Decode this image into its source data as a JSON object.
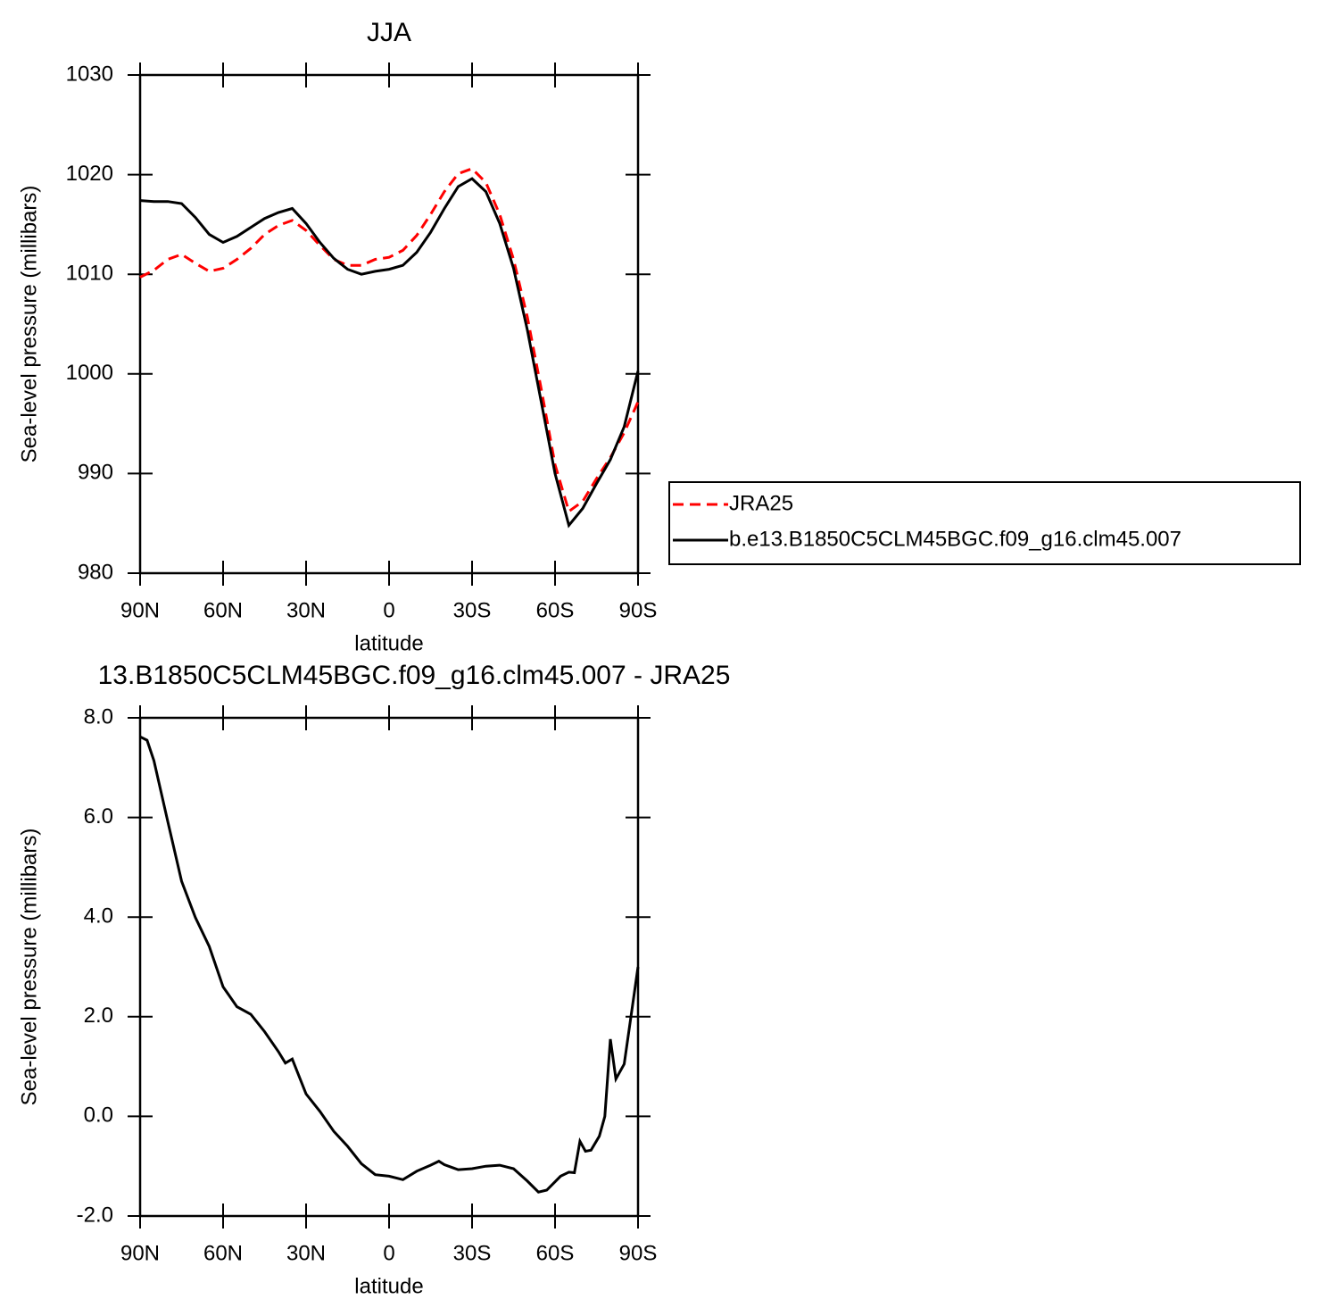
{
  "chart_data": [
    {
      "type": "line",
      "title": "JJA",
      "xlabel": "latitude",
      "ylabel": "Sea-level pressure (millibars)",
      "x": [
        90,
        85,
        80,
        75,
        70,
        65,
        60,
        55,
        50,
        45,
        40,
        35,
        30,
        25,
        20,
        15,
        10,
        5,
        0,
        -5,
        -10,
        -15,
        -20,
        -25,
        -30,
        -35,
        -40,
        -45,
        -50,
        -55,
        -60,
        -65,
        -70,
        -75,
        -80,
        -85,
        -90
      ],
      "series": [
        {
          "name": "JRA25",
          "color": "#ff0000",
          "dash": "dashed",
          "values": [
            1009.7,
            1010.4,
            1011.5,
            1012.0,
            1011.1,
            1010.3,
            1010.6,
            1011.5,
            1012.6,
            1014.0,
            1014.9,
            1015.4,
            1014.4,
            1012.9,
            1011.5,
            1010.9,
            1010.9,
            1011.5,
            1011.7,
            1012.4,
            1013.9,
            1016.0,
            1018.3,
            1020.1,
            1020.6,
            1019.2,
            1016.0,
            1011.5,
            1005.7,
            998.5,
            990.9,
            986.2,
            987.2,
            989.5,
            991.6,
            994.1,
            997.2
          ]
        },
        {
          "name": "b.e13.B1850C5CLM45BGC.f09_g16.clm45.007",
          "color": "#000000",
          "dash": "solid",
          "values": [
            1017.4,
            1017.3,
            1017.3,
            1017.1,
            1015.7,
            1014.0,
            1013.2,
            1013.8,
            1014.7,
            1015.6,
            1016.2,
            1016.6,
            1015.1,
            1013.2,
            1011.6,
            1010.5,
            1010.0,
            1010.3,
            1010.5,
            1010.9,
            1012.2,
            1014.2,
            1016.6,
            1018.8,
            1019.6,
            1018.3,
            1015.1,
            1010.6,
            1004.4,
            997.2,
            990.0,
            984.8,
            986.5,
            989.0,
            991.4,
            994.7,
            1000.3
          ]
        }
      ],
      "xlim": [
        90,
        -90
      ],
      "xticks": [
        {
          "value": 90,
          "label": "90N"
        },
        {
          "value": 60,
          "label": "60N"
        },
        {
          "value": 30,
          "label": "30N"
        },
        0,
        {
          "value": -30,
          "label": "30S"
        },
        {
          "value": -60,
          "label": "60S"
        },
        {
          "value": -90,
          "label": "90S"
        }
      ],
      "ylim": [
        980,
        1030
      ],
      "yticks": [
        980,
        990,
        1000,
        1010,
        1020,
        1030
      ],
      "grid": false,
      "legend": "outside-right"
    },
    {
      "type": "line",
      "title": "13.B1850C5CLM45BGC.f09_g16.clm45.007 - JRA25",
      "xlabel": "latitude",
      "ylabel": "Sea-level pressure (millibars)",
      "x": [
        90,
        87.5,
        85,
        80,
        75,
        70,
        65,
        60,
        55,
        50,
        45,
        40,
        37.5,
        35,
        30,
        25,
        20,
        15,
        10,
        5,
        0,
        -5,
        -10,
        -15,
        -18,
        -20,
        -25,
        -30,
        -35,
        -40,
        -45,
        -50,
        -54,
        -57,
        -62,
        -65,
        -67,
        -69,
        -71,
        -73,
        -76,
        -78,
        -80,
        -82,
        -85,
        -90
      ],
      "values": [
        7.62,
        7.55,
        7.14,
        5.92,
        4.72,
        3.99,
        3.41,
        2.6,
        2.2,
        2.05,
        1.7,
        1.3,
        1.07,
        1.15,
        0.45,
        0.1,
        -0.3,
        -0.6,
        -0.95,
        -1.17,
        -1.2,
        -1.27,
        -1.1,
        -0.98,
        -0.9,
        -0.97,
        -1.07,
        -1.05,
        -1.0,
        -0.98,
        -1.05,
        -1.3,
        -1.52,
        -1.48,
        -1.2,
        -1.12,
        -1.13,
        -0.5,
        -0.7,
        -0.68,
        -0.4,
        0.0,
        1.55,
        0.75,
        1.05,
        3.0
      ],
      "color": "#000000",
      "xlim": [
        90,
        -90
      ],
      "xticks": [
        {
          "value": 90,
          "label": "90N"
        },
        {
          "value": 60,
          "label": "60N"
        },
        {
          "value": 30,
          "label": "30N"
        },
        0,
        {
          "value": -30,
          "label": "30S"
        },
        {
          "value": -60,
          "label": "60S"
        },
        {
          "value": -90,
          "label": "90S"
        }
      ],
      "ylim": [
        -2,
        8
      ],
      "yticks": [
        {
          "value": -2,
          "label": "-2.0"
        },
        {
          "value": 0,
          "label": "0.0"
        },
        {
          "value": 2,
          "label": "2.0"
        },
        {
          "value": 4,
          "label": "4.0"
        },
        {
          "value": 6,
          "label": "6.0"
        },
        {
          "value": 8,
          "label": "8.0"
        }
      ],
      "grid": false
    }
  ]
}
